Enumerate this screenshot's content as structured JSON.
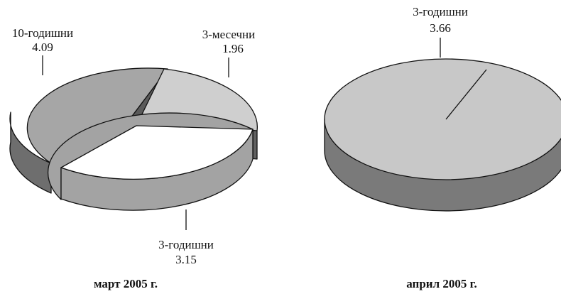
{
  "chart_data": [
    {
      "type": "pie",
      "caption": "март 2005 г.",
      "slices": [
        {
          "label": "10-годишни",
          "value": 4.09
        },
        {
          "label": "3-месечни",
          "value": 1.96
        },
        {
          "label": "3-годишни",
          "value": 3.15
        }
      ],
      "colors": {
        "10-годишни": "#a6a6a6",
        "3-месечни": "#cfcfcf",
        "3-годишни": "#ffffff"
      }
    },
    {
      "type": "pie",
      "caption": "април 2005 г.",
      "slices": [
        {
          "label": "3-годишни",
          "value": 3.66
        }
      ],
      "colors": {
        "3-годишни": "#c8c8c8"
      }
    }
  ]
}
